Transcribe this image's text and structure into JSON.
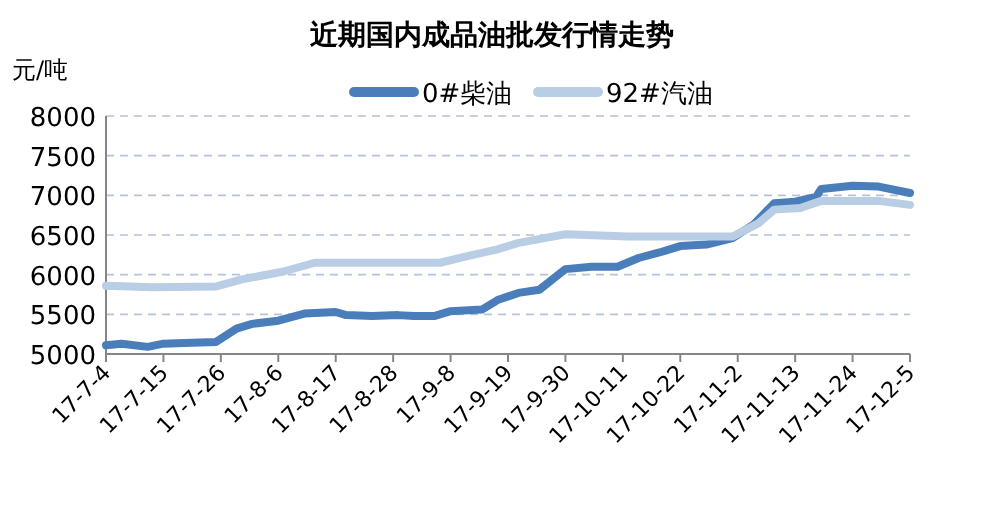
{
  "chart_data": {
    "type": "line",
    "title": "近期国内成品油批发行情走势",
    "ylabel": "元/吨",
    "series": [
      {
        "name": "0#柴油",
        "color": "#4a7ebb",
        "x": [
          "--07-04",
          "--07-07",
          "--07-12",
          "--07-15",
          "--07-19",
          "--07-25",
          "--07-29",
          "--08-01",
          "--08-06",
          "--08-11",
          "--08-17",
          "--08-19",
          "--08-24",
          "--08-29",
          "--09-01",
          "--09-05",
          "--09-08",
          "--09-14",
          "--09-17",
          "--09-21",
          "--09-25",
          "--09-30",
          "--10-05",
          "--10-10",
          "--10-14",
          "--10-18",
          "--10-22",
          "--10-27",
          "--11-01",
          "--11-05",
          "--11-09",
          "--11-13",
          "--11-17",
          "--11-18",
          "--11-24",
          "--11-29",
          "--12-05"
        ],
        "values": [
          5110,
          5130,
          5090,
          5130,
          5140,
          5150,
          5320,
          5380,
          5420,
          5510,
          5530,
          5490,
          5480,
          5490,
          5480,
          5480,
          5540,
          5560,
          5680,
          5770,
          5810,
          6070,
          6100,
          6100,
          6210,
          6280,
          6360,
          6380,
          6460,
          6630,
          6900,
          6920,
          6980,
          7080,
          7120,
          7110,
          7030
        ]
      },
      {
        "name": "92#汽油",
        "color": "#b9cde5",
        "x": [
          "--07-04",
          "--07-13",
          "--07-25",
          "--07-30",
          "--08-07",
          "--08-13",
          "--08-19",
          "--08-29",
          "--09-06",
          "--09-11",
          "--09-17",
          "--09-21",
          "--09-30",
          "--10-12",
          "--10-22",
          "--11-01",
          "--11-06",
          "--11-09",
          "--11-14",
          "--11-18",
          "--11-29",
          "--12-05"
        ],
        "values": [
          5860,
          5840,
          5850,
          5940,
          6040,
          6150,
          6150,
          6150,
          6150,
          6230,
          6320,
          6400,
          6510,
          6480,
          6480,
          6480,
          6650,
          6820,
          6840,
          6930,
          6930,
          6880
        ]
      }
    ],
    "xlim": [
      "--07-04",
      "--12-05"
    ],
    "xticks": [
      {
        "value": "--07-04",
        "label": "17-7-4"
      },
      {
        "value": "--07-15",
        "label": "17-7-15"
      },
      {
        "value": "--07-26",
        "label": "17-7-26"
      },
      {
        "value": "--08-06",
        "label": "17-8-6"
      },
      {
        "value": "--08-17",
        "label": "17-8-17"
      },
      {
        "value": "--08-28",
        "label": "17-8-28"
      },
      {
        "value": "--09-08",
        "label": "17-9-8"
      },
      {
        "value": "--09-19",
        "label": "17-9-19"
      },
      {
        "value": "--09-30",
        "label": "17-9-30"
      },
      {
        "value": "--10-11",
        "label": "17-10-11"
      },
      {
        "value": "--10-22",
        "label": "17-10-22"
      },
      {
        "value": "--11-02",
        "label": "17-11-2"
      },
      {
        "value": "--11-13",
        "label": "17-11-13"
      },
      {
        "value": "--11-24",
        "label": "17-11-24"
      },
      {
        "value": "--12-05",
        "label": "17-12-5"
      }
    ],
    "ylim": [
      5000,
      8000
    ],
    "yticks": [
      5000,
      5500,
      6000,
      6500,
      7000,
      7500,
      8000
    ],
    "grid": "y",
    "legend": "top",
    "marker": "none",
    "line_style": "solid"
  }
}
